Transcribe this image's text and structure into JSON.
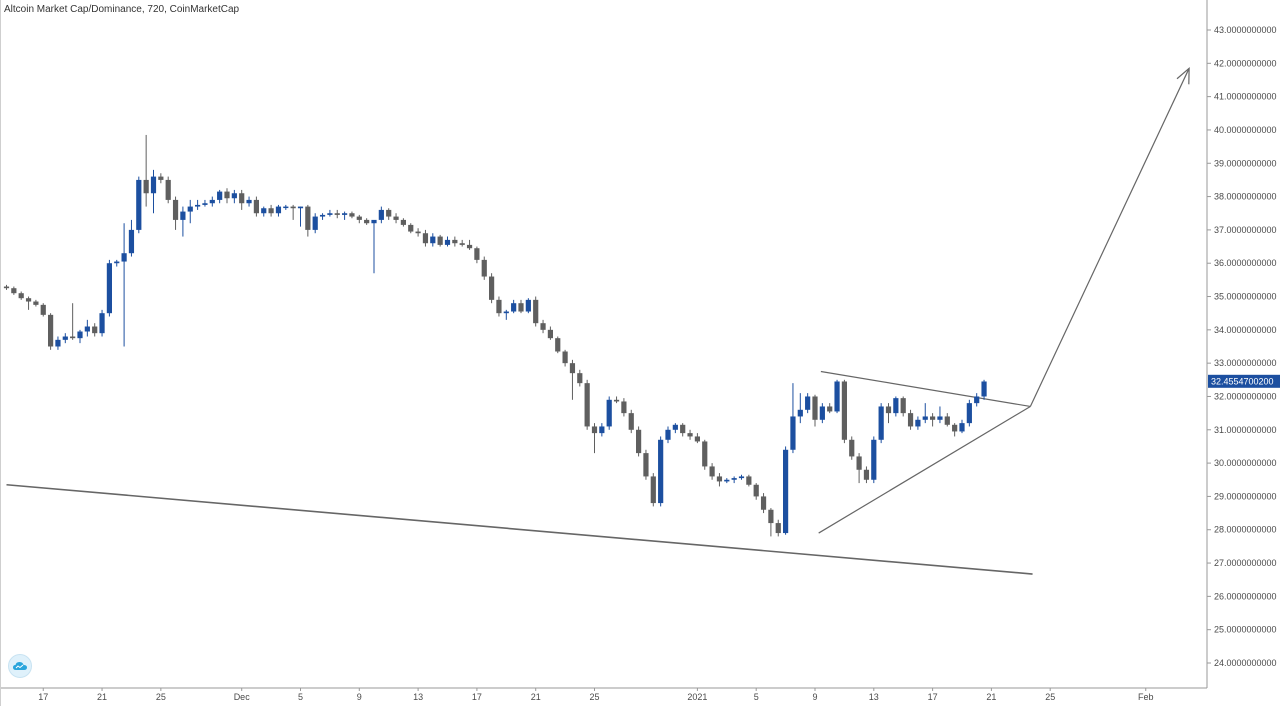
{
  "header": {
    "title": "Altcoin Market Cap/Dominance, 720, CoinMarketCap"
  },
  "colors": {
    "up": "#1c4fa0",
    "down": "#5f5f5f",
    "trendline": "#666666",
    "axis_line": "#999999",
    "last_price_bg": "#1c4fa0",
    "logo": "#2aa5dc"
  },
  "icons": {
    "logo": "coinmarketcap-cloud-icon"
  },
  "chart_data": {
    "type": "candlestick",
    "title": "Altcoin Market Cap/Dominance, 720, CoinMarketCap",
    "ylim": [
      23.85,
      43.3
    ],
    "xlim": [
      0,
      101
    ],
    "y_tick_labels": [
      {
        "v": 43,
        "t": "43.0000000000"
      },
      {
        "v": 42,
        "t": "42.0000000000"
      },
      {
        "v": 41,
        "t": "41.0000000000"
      },
      {
        "v": 40,
        "t": "40.0000000000"
      },
      {
        "v": 39,
        "t": "39.0000000000"
      },
      {
        "v": 38,
        "t": "38.0000000000"
      },
      {
        "v": 37,
        "t": "37.0000000000"
      },
      {
        "v": 36,
        "t": "36.0000000000"
      },
      {
        "v": 35,
        "t": "35.0000000000"
      },
      {
        "v": 34,
        "t": "34.0000000000"
      },
      {
        "v": 33,
        "t": "33.0000000000"
      },
      {
        "v": 32,
        "t": "32.0000000000"
      },
      {
        "v": 31,
        "t": "31.0000000000"
      },
      {
        "v": 30,
        "t": "30.0000000000"
      },
      {
        "v": 29,
        "t": "29.0000000000"
      },
      {
        "v": 28,
        "t": "28.0000000000"
      },
      {
        "v": 27,
        "t": "27.0000000000"
      },
      {
        "v": 26,
        "t": "26.0000000000"
      },
      {
        "v": 25,
        "t": "25.0000000000"
      },
      {
        "v": 24,
        "t": "24.0000000000"
      }
    ],
    "x_tick_labels": [
      {
        "i": 5,
        "t": "17"
      },
      {
        "i": 13,
        "t": "21"
      },
      {
        "i": 21,
        "t": "25"
      },
      {
        "i": 32,
        "t": "Dec"
      },
      {
        "i": 40,
        "t": "5"
      },
      {
        "i": 48,
        "t": "9"
      },
      {
        "i": 56,
        "t": "13"
      },
      {
        "i": 64,
        "t": "17"
      },
      {
        "i": 72,
        "t": "21"
      },
      {
        "i": 80,
        "t": "25"
      },
      {
        "i": 94,
        "t": "2021"
      },
      {
        "i": 102,
        "t": "5"
      },
      {
        "i": 110,
        "t": "9"
      },
      {
        "i": 118,
        "t": "13"
      },
      {
        "i": 126,
        "t": "17"
      },
      {
        "i": 134,
        "t": "21"
      },
      {
        "i": 142,
        "t": "25"
      },
      {
        "i": 155,
        "t": "Feb"
      }
    ],
    "last_price": {
      "value": 32.45547,
      "label": "32.4554700200"
    },
    "candles": [
      [
        35.3,
        35.35,
        35.2,
        35.25
      ],
      [
        35.25,
        35.3,
        35.05,
        35.1
      ],
      [
        35.1,
        35.15,
        34.9,
        34.95
      ],
      [
        34.95,
        35.0,
        34.6,
        34.85
      ],
      [
        34.85,
        34.9,
        34.7,
        34.75
      ],
      [
        34.75,
        34.8,
        34.4,
        34.45
      ],
      [
        34.45,
        34.5,
        33.4,
        33.5
      ],
      [
        33.5,
        33.8,
        33.4,
        33.7
      ],
      [
        33.7,
        33.9,
        33.6,
        33.8
      ],
      [
        33.8,
        34.8,
        33.7,
        33.75
      ],
      [
        33.75,
        34.0,
        33.6,
        33.95
      ],
      [
        33.95,
        34.3,
        33.8,
        34.1
      ],
      [
        34.1,
        34.2,
        33.8,
        33.9
      ],
      [
        33.9,
        34.6,
        33.8,
        34.5
      ],
      [
        34.5,
        36.1,
        34.4,
        36.0
      ],
      [
        36.0,
        36.1,
        35.9,
        36.05
      ],
      [
        36.05,
        37.2,
        33.5,
        36.3
      ],
      [
        36.3,
        37.3,
        36.2,
        37.0
      ],
      [
        37.0,
        38.6,
        36.9,
        38.5
      ],
      [
        38.5,
        39.85,
        37.7,
        38.1
      ],
      [
        38.1,
        38.8,
        37.5,
        38.6
      ],
      [
        38.6,
        38.7,
        38.4,
        38.5
      ],
      [
        38.5,
        38.6,
        37.8,
        37.9
      ],
      [
        37.9,
        38.0,
        37.0,
        37.3
      ],
      [
        37.3,
        37.7,
        36.8,
        37.55
      ],
      [
        37.55,
        37.9,
        37.2,
        37.7
      ],
      [
        37.7,
        37.9,
        37.6,
        37.75
      ],
      [
        37.75,
        37.9,
        37.7,
        37.8
      ],
      [
        37.8,
        38.0,
        37.7,
        37.9
      ],
      [
        37.9,
        38.2,
        37.8,
        38.15
      ],
      [
        38.15,
        38.25,
        37.8,
        37.95
      ],
      [
        37.95,
        38.2,
        37.8,
        38.1
      ],
      [
        38.1,
        38.2,
        37.6,
        37.8
      ],
      [
        37.8,
        38.0,
        37.7,
        37.9
      ],
      [
        37.9,
        38.0,
        37.4,
        37.5
      ],
      [
        37.5,
        37.7,
        37.4,
        37.65
      ],
      [
        37.65,
        37.75,
        37.4,
        37.5
      ],
      [
        37.5,
        37.75,
        37.4,
        37.7
      ],
      [
        37.7,
        37.75,
        37.6,
        37.7
      ],
      [
        37.7,
        37.75,
        37.3,
        37.65
      ],
      [
        37.65,
        37.7,
        37.1,
        37.7
      ],
      [
        37.7,
        37.75,
        36.8,
        37.0
      ],
      [
        37.0,
        37.5,
        36.9,
        37.4
      ],
      [
        37.4,
        37.5,
        37.3,
        37.45
      ],
      [
        37.45,
        37.6,
        37.4,
        37.5
      ],
      [
        37.5,
        37.6,
        37.35,
        37.45
      ],
      [
        37.45,
        37.55,
        37.3,
        37.5
      ],
      [
        37.5,
        37.55,
        37.35,
        37.4
      ],
      [
        37.4,
        37.45,
        37.2,
        37.3
      ],
      [
        37.3,
        37.35,
        37.15,
        37.2
      ],
      [
        37.2,
        37.25,
        35.7,
        37.3
      ],
      [
        37.3,
        37.7,
        37.2,
        37.6
      ],
      [
        37.6,
        37.65,
        37.3,
        37.4
      ],
      [
        37.4,
        37.5,
        37.2,
        37.3
      ],
      [
        37.3,
        37.35,
        37.1,
        37.15
      ],
      [
        37.15,
        37.2,
        36.9,
        36.95
      ],
      [
        36.95,
        37.05,
        36.8,
        36.9
      ],
      [
        36.9,
        37.0,
        36.5,
        36.6
      ],
      [
        36.6,
        36.9,
        36.5,
        36.8
      ],
      [
        36.8,
        36.85,
        36.5,
        36.55
      ],
      [
        36.55,
        36.8,
        36.5,
        36.7
      ],
      [
        36.7,
        36.8,
        36.5,
        36.6
      ],
      [
        36.6,
        36.7,
        36.5,
        36.55
      ],
      [
        36.55,
        36.7,
        36.4,
        36.45
      ],
      [
        36.45,
        36.5,
        36.0,
        36.1
      ],
      [
        36.1,
        36.2,
        35.5,
        35.6
      ],
      [
        35.6,
        35.7,
        34.8,
        34.9
      ],
      [
        34.9,
        35.0,
        34.4,
        34.5
      ],
      [
        34.5,
        34.6,
        34.3,
        34.55
      ],
      [
        34.55,
        34.9,
        34.5,
        34.8
      ],
      [
        34.8,
        34.9,
        34.5,
        34.55
      ],
      [
        34.55,
        34.95,
        34.5,
        34.9
      ],
      [
        34.9,
        35.0,
        34.1,
        34.2
      ],
      [
        34.2,
        34.3,
        33.9,
        34.0
      ],
      [
        34.0,
        34.1,
        33.7,
        33.75
      ],
      [
        33.75,
        33.8,
        33.3,
        33.35
      ],
      [
        33.35,
        33.4,
        32.9,
        33.0
      ],
      [
        33.0,
        33.1,
        31.9,
        32.7
      ],
      [
        32.7,
        32.8,
        32.3,
        32.4
      ],
      [
        32.4,
        32.5,
        31.0,
        31.1
      ],
      [
        31.1,
        31.2,
        30.3,
        30.9
      ],
      [
        30.9,
        31.2,
        30.8,
        31.1
      ],
      [
        31.1,
        32.0,
        31.0,
        31.9
      ],
      [
        31.9,
        32.0,
        31.8,
        31.85
      ],
      [
        31.85,
        31.95,
        31.4,
        31.5
      ],
      [
        31.5,
        31.6,
        30.9,
        31.0
      ],
      [
        31.0,
        31.1,
        30.2,
        30.3
      ],
      [
        30.3,
        30.4,
        29.5,
        29.6
      ],
      [
        29.6,
        29.7,
        28.7,
        28.8
      ],
      [
        28.8,
        30.8,
        28.7,
        30.7
      ],
      [
        30.7,
        31.1,
        30.6,
        31.0
      ],
      [
        31.0,
        31.2,
        30.9,
        31.15
      ],
      [
        31.15,
        31.2,
        30.8,
        30.9
      ],
      [
        30.9,
        31.0,
        30.7,
        30.8
      ],
      [
        30.8,
        30.9,
        30.6,
        30.65
      ],
      [
        30.65,
        30.7,
        29.8,
        29.9
      ],
      [
        29.9,
        30.0,
        29.5,
        29.6
      ],
      [
        29.6,
        29.7,
        29.3,
        29.45
      ],
      [
        29.45,
        29.55,
        29.4,
        29.5
      ],
      [
        29.5,
        29.6,
        29.4,
        29.55
      ],
      [
        29.55,
        29.65,
        29.5,
        29.6
      ],
      [
        29.6,
        29.65,
        29.3,
        29.35
      ],
      [
        29.35,
        29.4,
        28.9,
        29.0
      ],
      [
        29.0,
        29.1,
        28.5,
        28.6
      ],
      [
        28.6,
        28.65,
        27.8,
        28.2
      ],
      [
        28.2,
        28.3,
        27.8,
        27.9
      ],
      [
        27.9,
        30.5,
        27.85,
        30.4
      ],
      [
        30.4,
        32.4,
        30.3,
        31.4
      ],
      [
        31.4,
        32.1,
        31.2,
        31.6
      ],
      [
        31.6,
        32.1,
        31.5,
        32.0
      ],
      [
        32.0,
        32.05,
        31.1,
        31.3
      ],
      [
        31.3,
        31.8,
        31.2,
        31.7
      ],
      [
        31.7,
        31.8,
        31.5,
        31.55
      ],
      [
        31.55,
        32.5,
        31.5,
        32.45
      ],
      [
        32.45,
        32.5,
        30.6,
        30.7
      ],
      [
        30.7,
        30.8,
        30.1,
        30.2
      ],
      [
        30.2,
        30.3,
        29.4,
        29.8
      ],
      [
        29.8,
        29.9,
        29.4,
        29.5
      ],
      [
        29.5,
        30.8,
        29.4,
        30.7
      ],
      [
        30.7,
        31.8,
        30.6,
        31.7
      ],
      [
        31.7,
        31.8,
        31.2,
        31.5
      ],
      [
        31.5,
        32.0,
        31.4,
        31.95
      ],
      [
        31.95,
        32.0,
        31.4,
        31.5
      ],
      [
        31.5,
        31.6,
        31.0,
        31.1
      ],
      [
        31.1,
        31.4,
        31.0,
        31.3
      ],
      [
        31.3,
        31.8,
        31.2,
        31.4
      ],
      [
        31.4,
        31.5,
        31.1,
        31.3
      ],
      [
        31.3,
        31.7,
        31.2,
        31.4
      ],
      [
        31.4,
        31.5,
        31.1,
        31.15
      ],
      [
        31.15,
        31.2,
        30.8,
        30.95
      ],
      [
        30.95,
        31.3,
        30.9,
        31.2
      ],
      [
        31.2,
        31.9,
        31.1,
        31.8
      ],
      [
        31.8,
        32.1,
        31.7,
        32.0
      ],
      [
        32.0,
        32.5,
        31.9,
        32.45
      ]
    ],
    "drawings": [
      {
        "name": "long-term-trendline",
        "p1": [
          0,
          29.35
        ],
        "p2": [
          139.6,
          26.67
        ]
      },
      {
        "name": "triangle-upper-line",
        "p1": [
          110.8,
          32.75
        ],
        "p2": [
          139.3,
          31.7
        ]
      },
      {
        "name": "triangle-lower-line",
        "p1": [
          110.5,
          27.9
        ],
        "p2": [
          139.3,
          31.7
        ]
      },
      {
        "name": "breakout-arrow",
        "p1": [
          139.3,
          31.7
        ],
        "p2": [
          160.9,
          41.85
        ]
      }
    ]
  }
}
